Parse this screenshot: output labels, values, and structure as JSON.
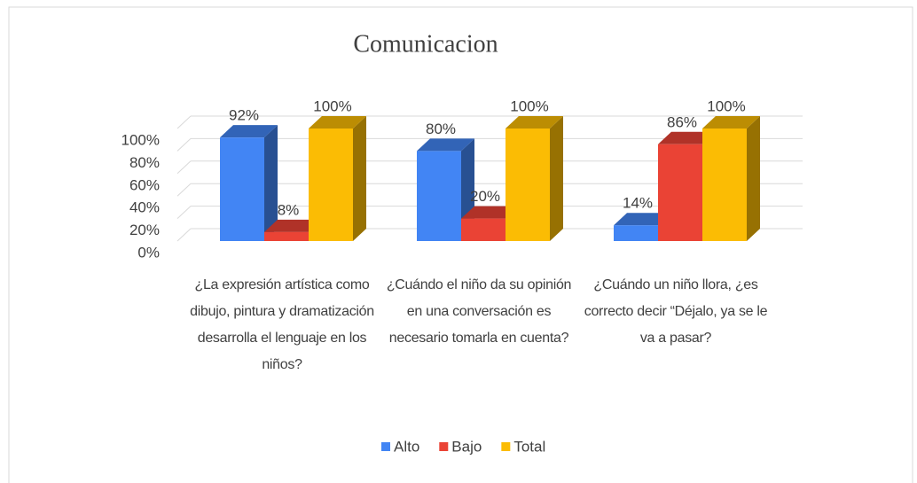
{
  "chart_data": {
    "type": "bar3d",
    "title": "Comunicacion",
    "categories": [
      "¿La expresión artística como dibujo, pintura y dramatización desarrolla el lenguaje en los niños?",
      "¿Cuándo el niño da su opinión en una conversación es necesario tomarla en cuenta?",
      "¿Cuándo un niño llora, ¿es correcto decir “Déjalo, ya se le va a pasar?"
    ],
    "series": [
      {
        "name": "Alto",
        "color": "#4285f4",
        "values": [
          92,
          80,
          14
        ],
        "value_labels": [
          "92%",
          "80%",
          "14%"
        ]
      },
      {
        "name": "Bajo",
        "color": "#ea4335",
        "values": [
          8,
          20,
          86
        ],
        "value_labels": [
          "8%",
          "20%",
          "86%"
        ]
      },
      {
        "name": "Total",
        "color": "#fbbc04",
        "values": [
          100,
          100,
          100
        ],
        "value_labels": [
          "100%",
          "100%",
          "100%"
        ]
      }
    ],
    "ylim": [
      0,
      100
    ],
    "yticks": [
      {
        "value": 0,
        "label": "0%"
      },
      {
        "value": 20,
        "label": "20%"
      },
      {
        "value": 40,
        "label": "40%"
      },
      {
        "value": 60,
        "label": "60%"
      },
      {
        "value": 80,
        "label": "80%"
      },
      {
        "value": 100,
        "label": "100%"
      }
    ],
    "grid": true,
    "legend": "bottom"
  }
}
